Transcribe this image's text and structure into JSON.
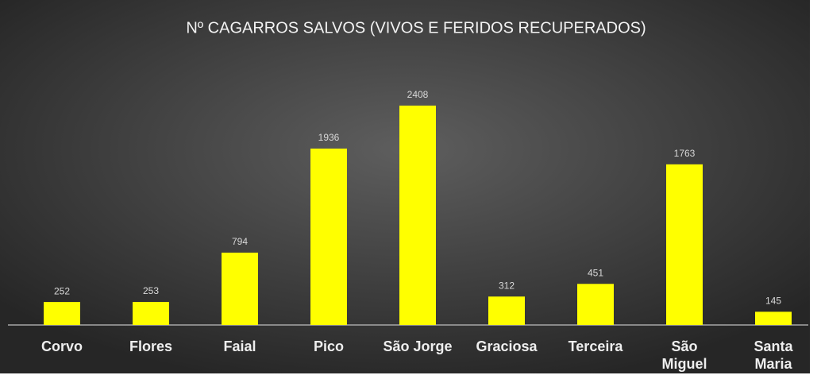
{
  "chart_data": {
    "type": "bar",
    "title": "Nº CAGARROS SALVOS (VIVOS E FERIDOS RECUPERADOS)",
    "categories": [
      "Corvo",
      "Flores",
      "Faial",
      "Pico",
      "São Jorge",
      "Graciosa",
      "Terceira",
      "São Miguel",
      "Santa Maria"
    ],
    "values": [
      252,
      253,
      794,
      1936,
      2408,
      312,
      451,
      1763,
      145
    ],
    "color": "#ffff00",
    "ylim": [
      0,
      3000
    ]
  }
}
